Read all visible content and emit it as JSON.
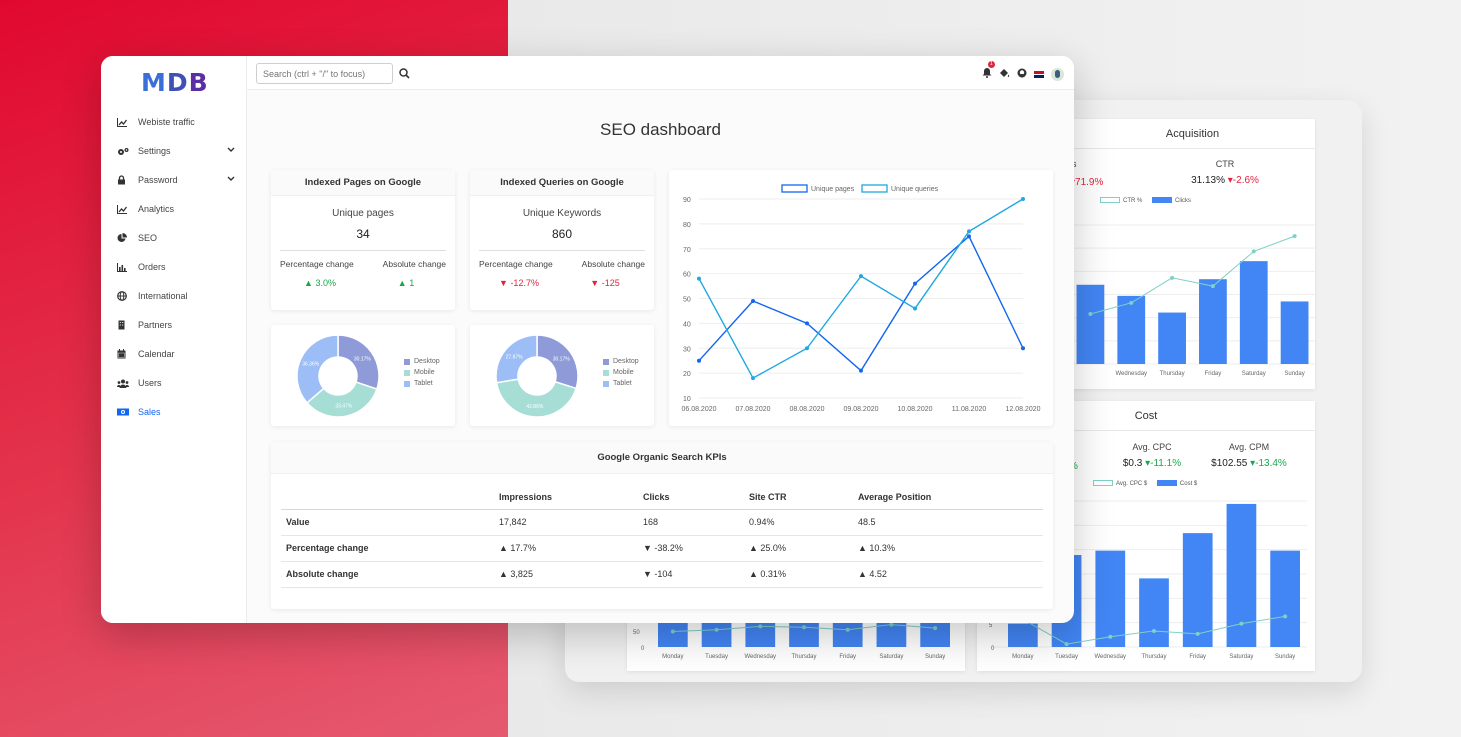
{
  "brand": {
    "logo": "MDB"
  },
  "search": {
    "placeholder": "Search (ctrl + \"/\" to focus)"
  },
  "notifications": {
    "count": "1"
  },
  "sidebar": {
    "items": [
      {
        "label": "Webiste traffic",
        "icon": "line-chart-icon"
      },
      {
        "label": "Settings",
        "icon": "gears-icon"
      },
      {
        "label": "Password",
        "icon": "lock-icon"
      },
      {
        "label": "Analytics",
        "icon": "line-chart-icon"
      },
      {
        "label": "SEO",
        "icon": "pie-chart-icon"
      },
      {
        "label": "Orders",
        "icon": "bar-chart-icon"
      },
      {
        "label": "International",
        "icon": "globe-icon"
      },
      {
        "label": "Partners",
        "icon": "building-icon"
      },
      {
        "label": "Calendar",
        "icon": "calendar-icon"
      },
      {
        "label": "Users",
        "icon": "users-icon"
      },
      {
        "label": "Sales",
        "icon": "money-bill-icon"
      }
    ],
    "active": "Sales"
  },
  "main": {
    "title": "SEO dashboard",
    "indexed_pages": {
      "header": "Indexed Pages on Google",
      "label": "Unique pages",
      "value": "34",
      "pct_label": "Percentage change",
      "abs_label": "Absolute change",
      "pct_value": "3.0%",
      "abs_value": "1"
    },
    "indexed_queries": {
      "header": "Indexed Queries on Google",
      "label": "Unique Keywords",
      "value": "860",
      "pct_label": "Percentage change",
      "abs_label": "Absolute change",
      "pct_value": "-12.7%",
      "abs_value": "-125"
    },
    "donut_legend": [
      "Desktop",
      "Mobile",
      "Tablet"
    ],
    "kpi_table": {
      "title": "Google Organic Search KPIs",
      "columns": [
        "",
        "Impressions",
        "Clicks",
        "Site CTR",
        "Average Position"
      ],
      "rows": [
        {
          "label": "Value",
          "cells": [
            "17,842",
            "168",
            "0.94%",
            "48.5"
          ]
        },
        {
          "label": "Percentage change",
          "cells": [
            "17.7%",
            "-38.2%",
            "25.0%",
            "10.3%"
          ]
        },
        {
          "label": "Absolute change",
          "cells": [
            "3,825",
            "-104",
            "0.31%",
            "4.52"
          ]
        }
      ]
    }
  },
  "back": {
    "acquisition": {
      "title": "Acquisition",
      "partial_label": "s",
      "partial_value": "71.9%",
      "ctr_label": "CTR",
      "ctr_value": "31.13%",
      "ctr_change": "-2.6%",
      "legend": [
        "CTR %",
        "Clicks"
      ],
      "days": [
        "Wednesday",
        "Thursday",
        "Friday",
        "Saturday",
        "Sunday"
      ],
      "partial_day": "y"
    },
    "cost": {
      "title": "Cost",
      "partial_value": "%",
      "cpc_label": "Avg. CPC",
      "cpc_value": "$0.3",
      "cpc_change": "-11.1%",
      "cpm_label": "Avg. CPM",
      "cpm_value": "$102.55",
      "cpm_change": "-13.4%",
      "legend": [
        "Avg. CPC $",
        "Cost $"
      ],
      "days": [
        "Monday",
        "Tuesday",
        "Wednesday",
        "Thursday",
        "Friday",
        "Saturday",
        "Sunday"
      ],
      "y_ticks": [
        "5",
        "0"
      ]
    },
    "bottom_left": {
      "days": [
        "Monday",
        "Tuesday",
        "Wednesday",
        "Thursday",
        "Friday",
        "Saturday",
        "Sunday"
      ],
      "y_ticks": [
        "50",
        "0"
      ]
    }
  },
  "chart_data": [
    {
      "type": "line",
      "x": [
        "06.08.2020",
        "07.08.2020",
        "08.08.2020",
        "09.08.2020",
        "10.08.2020",
        "11.08.2020",
        "12.08.2020"
      ],
      "ylim": [
        10,
        90
      ],
      "yticks": [
        10,
        20,
        30,
        40,
        50,
        60,
        70,
        80,
        90
      ],
      "series": [
        {
          "name": "Unique pages",
          "color": "#1266f1",
          "values": [
            25,
            49,
            40,
            21,
            56,
            75,
            30
          ]
        },
        {
          "name": "Unique queries",
          "color": "#1ea7e1",
          "values": [
            58,
            18,
            30,
            59,
            46,
            77,
            90
          ]
        }
      ],
      "legend_position": "top"
    },
    {
      "type": "pie",
      "labels": [
        "Desktop",
        "Mobile",
        "Tablet"
      ],
      "values": [
        30.17,
        33.47,
        36.36
      ],
      "value_labels": [
        "30.17%",
        "33.47%",
        "36.36%"
      ],
      "colors": [
        "#8e9bd8",
        "#a6ded6",
        "#9dbdf7"
      ]
    },
    {
      "type": "pie",
      "labels": [
        "Desktop",
        "Mobile",
        "Tablet"
      ],
      "values": [
        30.17,
        42.86,
        27.87
      ],
      "value_labels": [
        "30.17%",
        "42.86%",
        "27.87%"
      ],
      "colors": [
        "#8e9bd8",
        "#a6ded6",
        "#9dbdf7"
      ]
    },
    {
      "type": "bar",
      "categories": [
        "Tuesday",
        "Wednesday",
        "Thursday",
        "Friday",
        "Saturday",
        "Sunday"
      ],
      "series": [
        {
          "name": "Clicks",
          "type": "bar",
          "values": [
            57,
            49,
            37,
            61,
            74,
            45
          ]
        },
        {
          "name": "CTR %",
          "type": "line",
          "values": [
            36,
            44,
            62,
            56,
            81,
            92
          ]
        }
      ]
    },
    {
      "type": "bar",
      "categories": [
        "Monday",
        "Tuesday",
        "Wednesday",
        "Thursday",
        "Friday",
        "Saturday",
        "Sunday"
      ],
      "series": [
        {
          "name": "Cost $",
          "type": "bar",
          "values": [
            16,
            63,
            66,
            47,
            78,
            98,
            66
          ]
        },
        {
          "name": "Avg. CPC $",
          "type": "line",
          "values": [
            19,
            2,
            7,
            11,
            9,
            16,
            21
          ]
        }
      ]
    },
    {
      "type": "bar",
      "categories": [
        "Monday",
        "Tuesday",
        "Wednesday",
        "Thursday",
        "Friday",
        "Saturday",
        "Sunday"
      ],
      "series": [
        {
          "name": "bars",
          "type": "bar",
          "values": [
            35,
            35,
            35,
            35,
            35,
            35,
            35
          ]
        },
        {
          "name": "line",
          "type": "line",
          "values": [
            18,
            20,
            24,
            23,
            20,
            26,
            22
          ]
        }
      ]
    }
  ]
}
